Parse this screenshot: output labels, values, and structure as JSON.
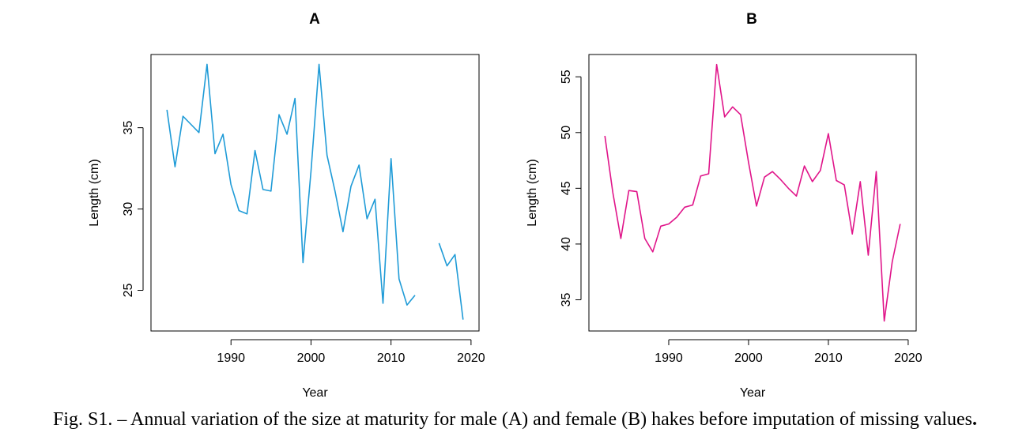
{
  "chart_data": [
    {
      "type": "line",
      "title": "A",
      "xlabel": "Year",
      "ylabel": "Length (cm)",
      "xlim": [
        1980,
        2021
      ],
      "ylim": [
        22.5,
        39.5
      ],
      "xticks": [
        1990,
        2000,
        2010,
        2020
      ],
      "yticks": [
        25,
        30,
        35
      ],
      "grid": false,
      "color": "#1f9bd7",
      "series": [
        {
          "x": [
            1982,
            1983,
            1984,
            1985,
            1986,
            1987,
            1988,
            1989,
            1990,
            1991,
            1992,
            1993,
            1994,
            1995,
            1996,
            1997,
            1998,
            1999,
            2000,
            2001,
            2002,
            2003,
            2004,
            2005,
            2006,
            2007,
            2008,
            2009,
            2010,
            2011,
            2012,
            2013,
            2014,
            2015,
            2016,
            2017,
            2018,
            2019
          ],
          "y": [
            36.1,
            32.6,
            35.7,
            35.2,
            34.7,
            38.9,
            33.4,
            34.6,
            31.5,
            29.9,
            29.7,
            33.6,
            31.2,
            31.1,
            35.8,
            34.6,
            36.8,
            26.7,
            32.3,
            38.9,
            33.3,
            31.1,
            28.6,
            31.4,
            32.7,
            29.4,
            30.6,
            24.2,
            33.1,
            25.7,
            24.1,
            24.7,
            null,
            null,
            27.9,
            26.5,
            27.2,
            23.2
          ]
        }
      ]
    },
    {
      "type": "line",
      "title": "B",
      "xlabel": "Year",
      "ylabel": "Length (cm)",
      "xlim": [
        1980,
        2021
      ],
      "ylim": [
        32.2,
        57.0
      ],
      "xticks": [
        1990,
        2000,
        2010,
        2020
      ],
      "yticks": [
        35,
        40,
        45,
        50,
        55
      ],
      "grid": false,
      "color": "#e0158a",
      "series": [
        {
          "x": [
            1982,
            1983,
            1984,
            1985,
            1986,
            1987,
            1988,
            1989,
            1990,
            1991,
            1992,
            1993,
            1994,
            1995,
            1996,
            1997,
            1998,
            1999,
            2000,
            2001,
            2002,
            2003,
            2004,
            2005,
            2006,
            2007,
            2008,
            2009,
            2010,
            2011,
            2012,
            2013,
            2014,
            2015,
            2016,
            2017,
            2018,
            2019
          ],
          "y": [
            49.7,
            44.6,
            40.5,
            44.8,
            44.7,
            40.5,
            39.3,
            41.6,
            41.8,
            42.4,
            43.3,
            43.5,
            46.1,
            46.3,
            56.1,
            51.4,
            52.3,
            51.6,
            47.3,
            43.4,
            46.0,
            46.5,
            45.8,
            45.0,
            44.3,
            47.0,
            45.6,
            46.6,
            49.9,
            45.7,
            45.3,
            40.9,
            45.6,
            39.0,
            46.5,
            33.1,
            38.4,
            41.8
          ]
        }
      ]
    }
  ],
  "caption": {
    "lead": "Fig. S1. – Annual variation of the size at maturity for male (A) and female (B) hakes before imputation of missing values",
    "tail": "."
  }
}
